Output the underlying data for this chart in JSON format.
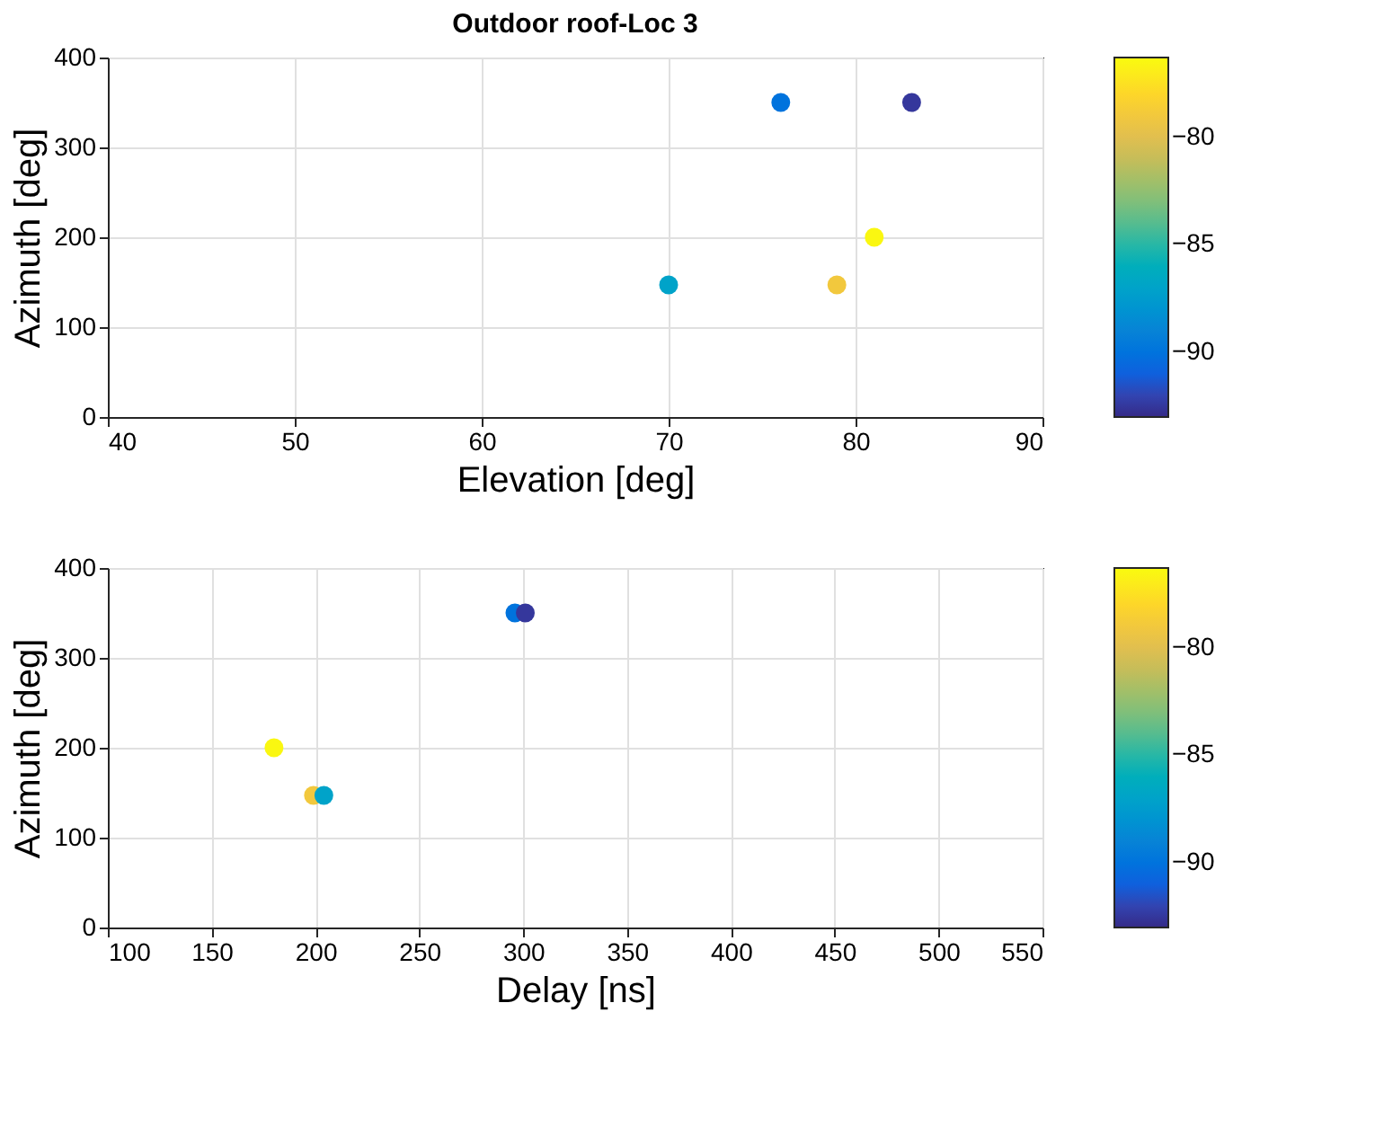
{
  "chart_data": [
    {
      "type": "scatter",
      "title": "Outdoor roof-Loc 3",
      "xlabel": "Elevation [deg]",
      "ylabel": "Azimuth [deg]",
      "marker": "circle",
      "grid": true,
      "x": [
        76,
        83,
        81,
        79,
        70
      ],
      "values": [
        350,
        350,
        200,
        147,
        147
      ],
      "cvalues": [
        -90,
        -92.5,
        -76.5,
        -79,
        -87
      ],
      "clim": [
        -93,
        -76.3
      ],
      "cticks": [
        -80,
        -85,
        -90
      ],
      "xlim": [
        40,
        90
      ],
      "xticks": [
        40,
        50,
        60,
        70,
        80,
        90
      ],
      "ylim": [
        0,
        400
      ],
      "yticks": [
        0,
        100,
        200,
        300,
        400
      ]
    },
    {
      "type": "scatter",
      "xlabel": "Delay [ns]",
      "ylabel": "Azimuth [deg]",
      "marker": "circle",
      "grid": true,
      "x": [
        296,
        301,
        180,
        199,
        204
      ],
      "values": [
        350,
        350,
        200,
        147,
        147
      ],
      "cvalues": [
        -90,
        -92.5,
        -76.5,
        -79,
        -87
      ],
      "clim": [
        -93,
        -76.3
      ],
      "cticks": [
        -80,
        -85,
        -90
      ],
      "xlim": [
        100,
        550
      ],
      "xticks": [
        100,
        150,
        200,
        250,
        300,
        350,
        400,
        450,
        500,
        550
      ],
      "ylim": [
        0,
        400
      ],
      "yticks": [
        0,
        100,
        200,
        300,
        400
      ]
    }
  ]
}
